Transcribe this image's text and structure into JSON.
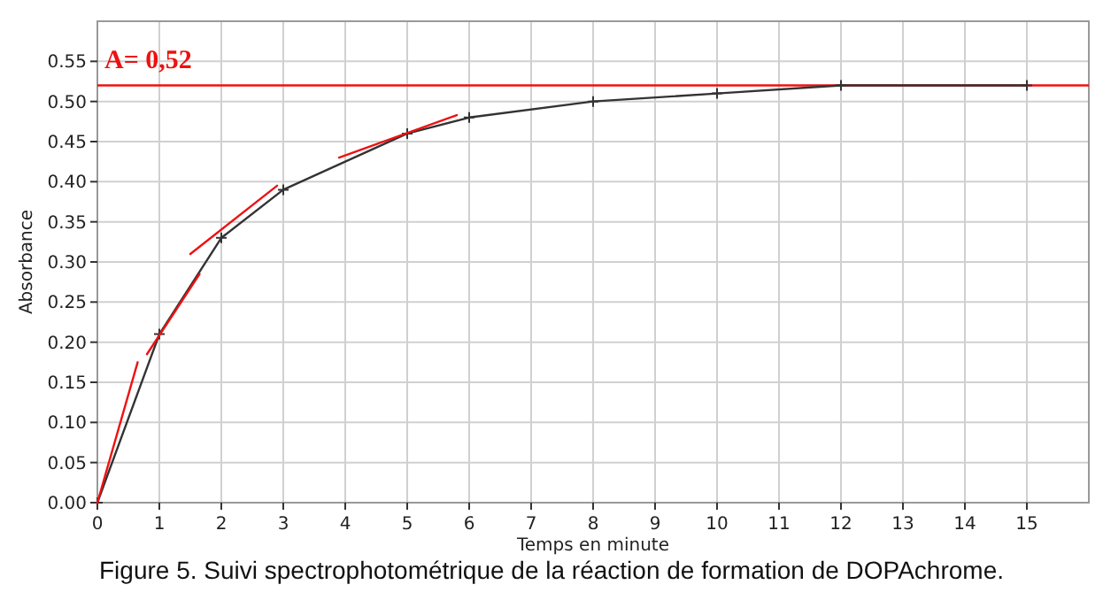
{
  "chart_data": {
    "type": "line",
    "title": "Figure 5. Suivi spectrophotométrique de la réaction de formation de DOPAchrome.",
    "xlabel": "Temps en minute",
    "ylabel": "Absorbance",
    "series": [
      {
        "color": "#333333",
        "marker": "cross",
        "x": [
          0,
          1,
          2,
          3,
          5,
          6,
          8,
          10,
          12,
          15
        ],
        "values": [
          0,
          0.21,
          0.33,
          0.39,
          0.46,
          0.48,
          0.5,
          0.51,
          0.52,
          0.52
        ]
      },
      {
        "color": "#ee1111",
        "marker": "none",
        "x": [
          0,
          0.65
        ],
        "values": [
          0,
          0.175
        ]
      },
      {
        "color": "#ee1111",
        "marker": "none",
        "x": [
          0.8,
          1.65
        ],
        "values": [
          0.185,
          0.285
        ]
      },
      {
        "color": "#ee1111",
        "marker": "none",
        "x": [
          1.5,
          2.9
        ],
        "values": [
          0.31,
          0.395
        ]
      },
      {
        "color": "#ee1111",
        "marker": "none",
        "x": [
          3.9,
          5.8
        ],
        "values": [
          0.43,
          0.483
        ]
      }
    ],
    "ref_lines": [
      {
        "axis": "y",
        "value": 0.52,
        "label": "A= 0,52",
        "color": "#ee1111"
      }
    ],
    "xlim": [
      0,
      16
    ],
    "ylim": [
      0,
      0.6
    ],
    "xticks": [
      0,
      1,
      2,
      3,
      4,
      5,
      6,
      7,
      8,
      9,
      10,
      11,
      12,
      13,
      14,
      15
    ],
    "yticks": [
      {
        "value": 0,
        "label": "0.00"
      },
      {
        "value": 0.05,
        "label": "0.05"
      },
      {
        "value": 0.1,
        "label": "0.10"
      },
      {
        "value": 0.15,
        "label": "0.15"
      },
      {
        "value": 0.2,
        "label": "0.20"
      },
      {
        "value": 0.25,
        "label": "0.25"
      },
      {
        "value": 0.3,
        "label": "0.30"
      },
      {
        "value": 0.35,
        "label": "0.35"
      },
      {
        "value": 0.4,
        "label": "0.40"
      },
      {
        "value": 0.45,
        "label": "0.45"
      },
      {
        "value": 0.5,
        "label": "0.50"
      },
      {
        "value": 0.55,
        "label": "0.55"
      }
    ],
    "grid": true
  }
}
